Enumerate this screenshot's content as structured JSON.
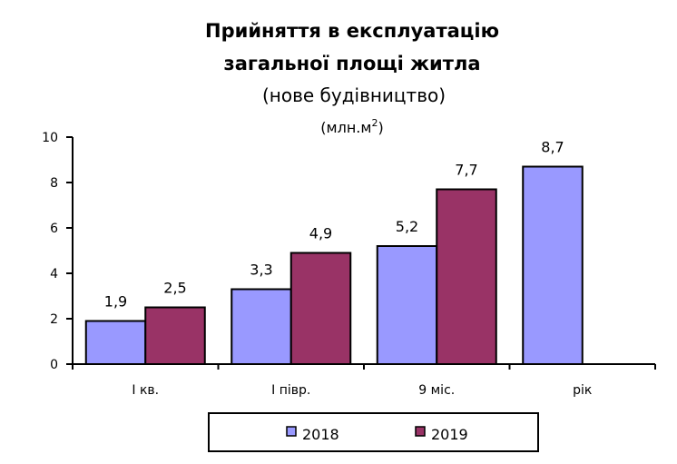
{
  "chart_data": {
    "type": "bar",
    "title": [
      "Прийняття в експлуатацію",
      "загальної площі житла"
    ],
    "subtitle": "(нове будівництво)",
    "unit": "(млн.м",
    "unit_sup": "2",
    "unit_close": ")",
    "categories": [
      "І кв.",
      "І півр.",
      "9 міс.",
      "рік"
    ],
    "series": [
      {
        "name": "2018",
        "color": "#9999FF",
        "values": [
          1.9,
          3.3,
          5.2,
          8.7
        ],
        "labels": [
          "1,9",
          "3,3",
          "5,2",
          "8,7"
        ]
      },
      {
        "name": "2019",
        "color": "#993366",
        "values": [
          2.5,
          4.9,
          7.7,
          null
        ],
        "labels": [
          "2,5",
          "4,9",
          "7,7",
          ""
        ]
      }
    ],
    "ylim": [
      0,
      10
    ],
    "yticks": [
      "0",
      "2",
      "4",
      "6",
      "8",
      "10"
    ],
    "grid": false,
    "legend": "bottom"
  }
}
